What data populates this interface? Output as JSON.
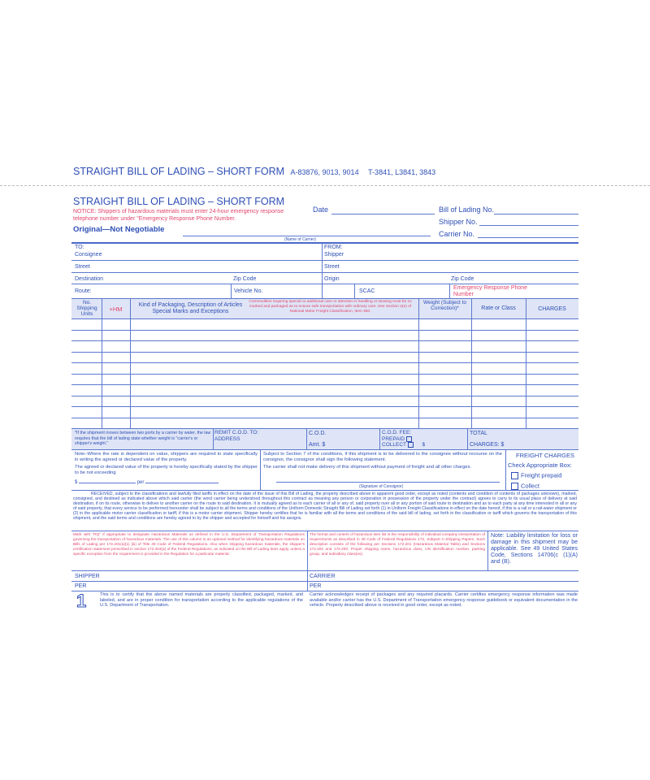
{
  "header": {
    "title": "STRAIGHT BILL OF LADING – SHORT FORM",
    "codes1": "A-83876, 9013, 9014",
    "codes2": "T-3841, L3841, 3843"
  },
  "form": {
    "title": "STRAIGHT BILL OF LADING – SHORT FORM",
    "notice": "NOTICE: Shippers of hazardous materials must enter 24-hour emergency response telephone number under \"Emergency Response Phone Number.",
    "original": "Original—Not Negotiable",
    "date": "Date",
    "bol_no": "Bill of Lading No.",
    "shipper_no": "Shipper No.",
    "carrier_no": "Carrier No.",
    "name_of_carrier": "(Name of Carrier)",
    "to": "TO:",
    "consignee": "Consignee",
    "from": "FROM:",
    "shipper": "Shipper",
    "street": "Street",
    "destination": "Destination",
    "zip": "Zip Code",
    "origin": "Origin",
    "route": "Route:",
    "vehicle": "Vehicle No.",
    "scac": "SCAC",
    "emergency": "Emergency Response Phone Number",
    "columns": {
      "units": "No. Shipping Units",
      "hm": "+HM",
      "kind": "Kind of Packaging, Description of Articles Special Marks and Exceptions",
      "commodities": "Commodities requiring special or additional care or attention in handling or stowing must be so marked and packaged as to ensure safe transportation with ordinary care. See Section 2(e) of National Motor Freight Classification, Item 360.",
      "weight": "Weight (Subject to Correction)*",
      "rate": "Rate or Class",
      "charges": "CHARGES"
    },
    "water_note": "*If the shipment moves between two ports by a carrier by water, the law requires that the bill of lading state whether weight is \"carrier's or shipper's weight.\"",
    "remit": "REMIT C.O.D. TO: ADDRESS",
    "cod": "C.O.D.",
    "amt": "Amt. $",
    "cod_fee": "C.O.D. FEE:",
    "prepaid": "PREPAID",
    "collect": "COLLECT",
    "dollar": "$",
    "total": "TOTAL",
    "total_charges": "CHARGES: $",
    "value_note1": "Note–Where the rate is dependent on value, shippers are required to state specifically in writing the agreed or declared value of the property.",
    "value_note2": "The agreed or declared value of the property is hereby specifically stated by the shipper to be not exceeding",
    "value_per": "per",
    "section7": "Subject to Section 7 of the conditions, if this shipment is to be delivered to the consignee without recourse on the consignor, the consignor shall sign the following statement.",
    "carrier_stmt": "The carrier shall not make delivery of this shipment without payment of freight and all other charges.",
    "sig_consignor": "(Signature of Consignor)",
    "freight_charges": "FREIGHT CHARGES",
    "check_box": "Check Appropriate Box:",
    "freight_prepaid": "Freight prepaid",
    "freight_collect": "Collect",
    "received": "RECEIVED, subject to the classifications and lawfully filed tariffs in effect on the date of the issue of this Bill of Lading, the property described above in apparent good order, except as noted (contents and condition of contents of packages unknown), marked, consigned, and destined as indicated above which said carrier (the word carrier being understood throughout this contract as meaning any person or corporation in possession of the property under the contract) agrees to carry to its usual place of delivery at said destination, if on its route, otherwise to deliver to another carrier on the route to said destination. It is mutually agreed as to each carrier of all or any of, said property over all or any portion of said route to destination and as to each party at any time interested in all or any of said property, that every service to be performed hereunder shall be subject to all the terms and conditions of the Uniform Domestic Straight Bill of Lading set forth (1) in Uniform Freight Classifications in effect on the date hereof, if this is a rail or a rail-water shipment or (2) in the applicable motor carrier classification or tariff, if this is a motor carrier shipment. Shipper hereby certifies that he is familiar with all the terms and conditions of the said bill of lading, set forth in the classification or tariff which governs the transportation of this shipment, and the said terms and conditions are hereby agreed to by the shipper and accepted for himself and his assigns.",
    "hazmat_mark": "Mark with \"RQ\" if appropriate to designate Hazardous Materials as defined in the U.S. Department of Transportation Regulations governing the transportation of hazardous materials. The use of this column is an optional method for identifying hazardous materials on Bills of Lading per 172.201(a)(1) (iii) of Title 49 Code of Federal Regulations. Also when shipping hazardous materials, the shipper's certification statement prescribed in section 172.204(a) of the Federal Regulations, as indicated on the Bill of Lading does apply, unless a specific exception from the requirement is provided in the Regulation for a particular material.",
    "hazmat_format": "The format and content of hazardous item list is the responsibility of individual company interpretation of requirements as described in 49 Code of Federal Regulations 172, Subpart C-Shipping Papers. Such description consists of the following per Sections 172.201 (Hazardous Material Table) and Sections 172.202 and 172.203: Proper shipping name, hazardous class, UN identification number, packing group, and subsidiary class(es).",
    "liability": "Note: Liability limitation for loss or damage in this shipment may be applicable. See 49 United States Code, Sections 14706(c (1)(A) and (B).",
    "shipper_sig": "SHIPPER",
    "carrier_sig": "CARRIER",
    "per": "PER",
    "copy_number": "1",
    "certify": "This is to certify that the above named materials are properly classified, packaged, marked, and labeled, and are in proper condition for transportation according to the applicable regulations of the U.S. Department of Transportation.",
    "carrier_ack": "Carrier acknowledges receipt of packages and any required placards. Carrier certifies emergency response information was made available and/or carrier has the U.S. Department of Transportation emergency response guidebook or equivalent documentation in the vehicle. Property described above is received in good order, except as noted."
  },
  "colors": {
    "blue": "#2e4fb5",
    "red": "#e2456c",
    "shade": "#dfe5f6"
  }
}
